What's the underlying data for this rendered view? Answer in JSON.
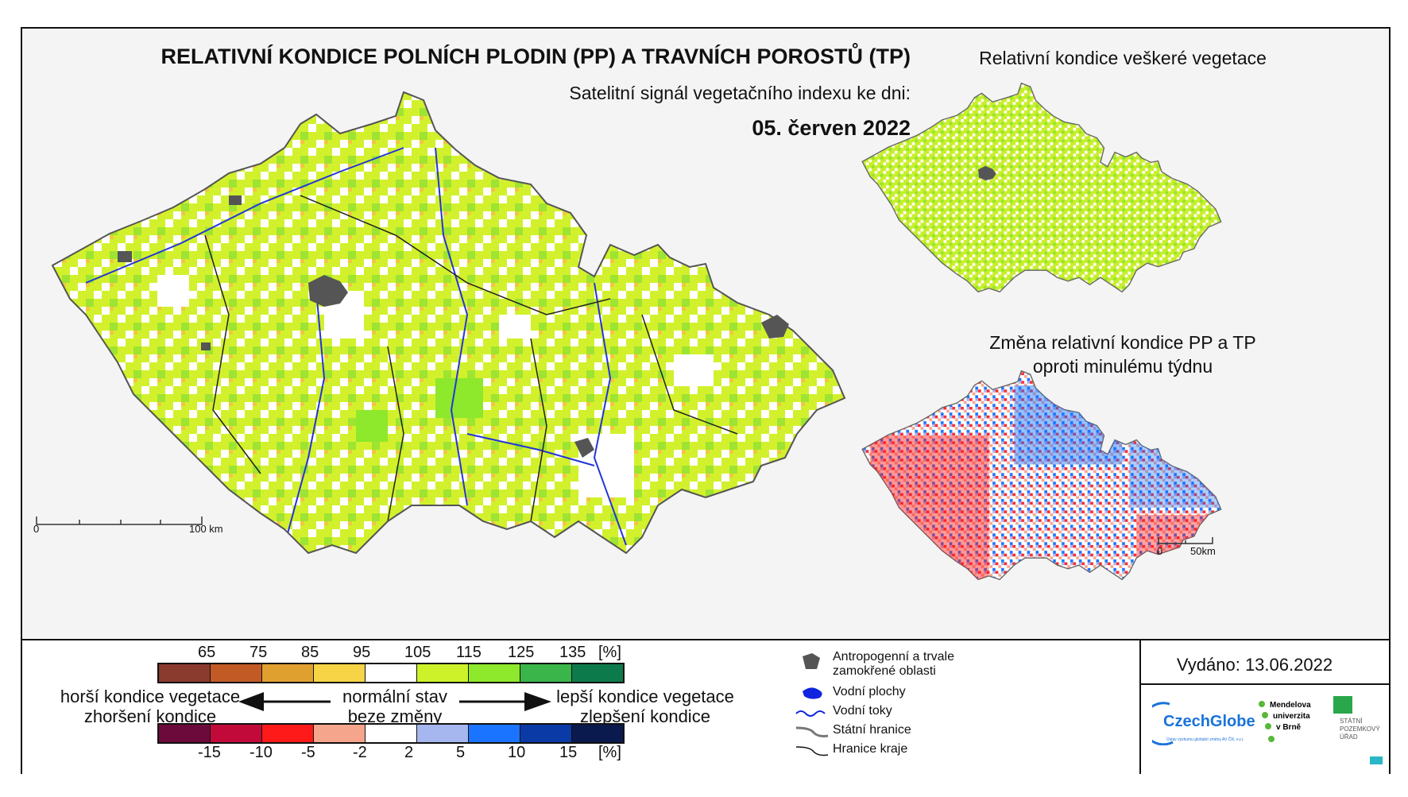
{
  "header": {
    "title": "RELATIVNÍ KONDICE POLNÍCH PLODIN (PP) A TRAVNÍCH POROSTŮ (TP)",
    "subtitle": "Satelitní signál vegetačního indexu ke dni:",
    "date": "05. červen 2022"
  },
  "inset_top": {
    "title": "Relativní kondice veškeré vegetace"
  },
  "inset_bottom": {
    "title_line1": "Změna relativní kondice PP a TP",
    "title_line2": "oproti minulému týdnu"
  },
  "scale_main": {
    "start": "0",
    "end": "100 km"
  },
  "scale_inset": {
    "start": "0",
    "end": "50km"
  },
  "legend_condition": {
    "labels": [
      "65",
      "75",
      "85",
      "95",
      "105",
      "115",
      "125",
      "135",
      "[%]"
    ],
    "colors": [
      "#8b3a2e",
      "#c15a25",
      "#e0a030",
      "#f6d445",
      "#ffffff",
      "#cdf22a",
      "#8ee82c",
      "#39b54a",
      "#0d7a4b"
    ]
  },
  "legend_change": {
    "labels": [
      "-15",
      "-10",
      "-5",
      "-2",
      "2",
      "5",
      "10",
      "15",
      "[%]"
    ],
    "colors": [
      "#6d0a3c",
      "#c10a3a",
      "#ff1a1a",
      "#f6a58d",
      "#ffffff",
      "#a6b6ee",
      "#1a74ff",
      "#0a3aa6",
      "#0a1a4e"
    ]
  },
  "legend_text": {
    "worse_line1": "horší kondice vegetace",
    "worse_line2": "zhoršení kondice",
    "normal_line1": "normální stav",
    "normal_line2": "beze změny",
    "better_line1": "lepší kondice vegetace",
    "better_line2": "zlepšení kondice"
  },
  "symbols": {
    "urban": "Antropogenní a trvale zamokřené oblasti",
    "urban_l1": "Antropogenní a trvale",
    "urban_l2": "zamokřené oblasti",
    "water_bodies": "Vodní plochy",
    "rivers": "Vodní toky",
    "state_border": "Státní hranice",
    "region_border": "Hranice kraje"
  },
  "issued": "Vydáno: 13.06.2022",
  "logos": {
    "czechglobe": "CzechGlobe",
    "czechglobe_sub": "Ústav výzkumu globální změny AV ČR, v.v.i.",
    "mendel_l1": "Mendelova",
    "mendel_l2": "univerzita",
    "mendel_l3": "v Brně",
    "spu_l1": "STÁTNÍ",
    "spu_l2": "POZEMKOVÝ",
    "spu_l3": "ÚŘAD"
  }
}
